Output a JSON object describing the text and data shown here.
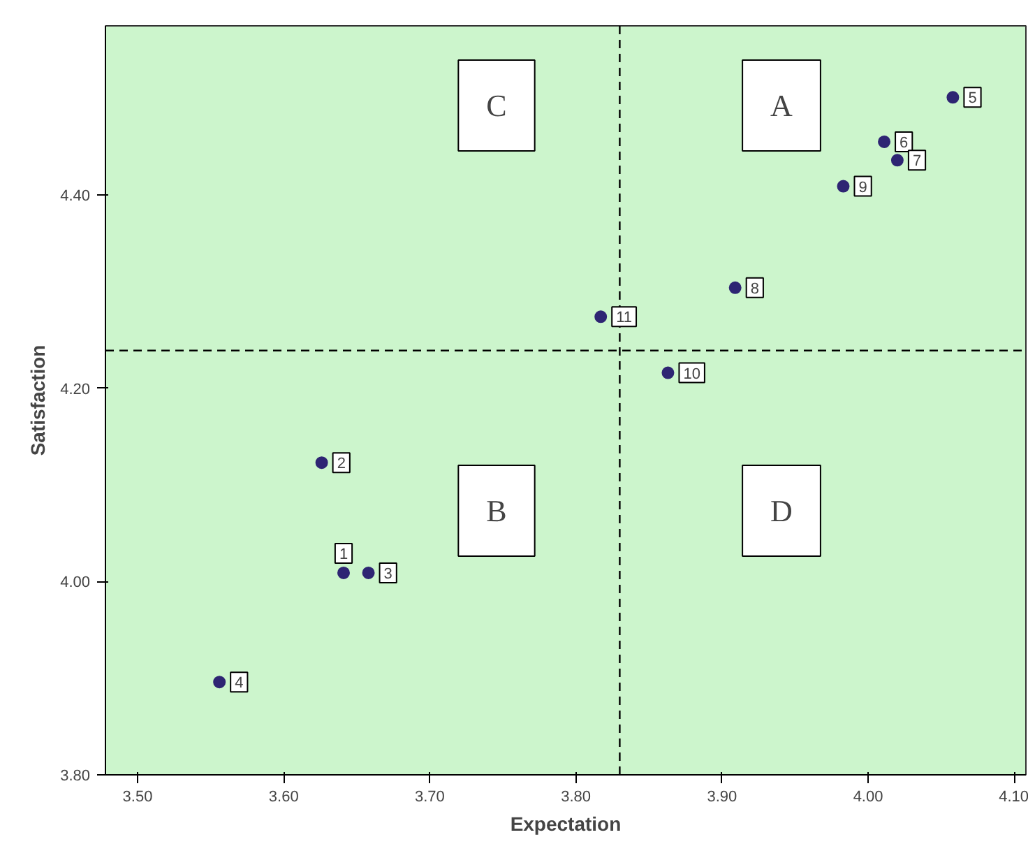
{
  "chart_data": {
    "type": "scatter",
    "xlabel": "Expectation",
    "ylabel": "Satisfaction",
    "x": [
      3.641,
      3.626,
      3.658,
      3.556,
      4.058,
      4.011,
      4.02,
      3.909,
      3.983,
      3.863,
      3.817
    ],
    "values": [
      4.009,
      4.123,
      4.009,
      3.896,
      4.501,
      4.455,
      4.436,
      4.304,
      4.409,
      4.216,
      4.274
    ],
    "color": "#2e2573",
    "marker": "circle",
    "grid": false,
    "xlim": [
      3.478,
      4.108
    ],
    "ylim": [
      3.8,
      4.575
    ],
    "xticks": [
      {
        "value": 3.5,
        "label": "3.50"
      },
      {
        "value": 3.6,
        "label": "3.60"
      },
      {
        "value": 3.7,
        "label": "3.70"
      },
      {
        "value": 3.8,
        "label": "3.80"
      },
      {
        "value": 3.9,
        "label": "3.90"
      },
      {
        "value": 4.0,
        "label": "4.00"
      },
      {
        "value": 4.1,
        "label": "4.10"
      }
    ],
    "yticks": [
      {
        "value": 3.8,
        "label": "3.80"
      },
      {
        "value": 4.0,
        "label": "4.00"
      },
      {
        "value": 4.2,
        "label": "4.20"
      },
      {
        "value": 4.4,
        "label": "4.40"
      }
    ],
    "ref_lines": [
      {
        "axis": "x",
        "value": 3.83,
        "line_style": "dashed",
        "color": "#000000"
      },
      {
        "axis": "y",
        "value": 4.239,
        "line_style": "dashed",
        "color": "#000000"
      }
    ],
    "annotations": [
      "C",
      "A",
      "B",
      "D",
      {
        "text": "1",
        "x": 3.641,
        "y": 4.009
      },
      {
        "text": "2",
        "x": 3.626,
        "y": 4.123
      },
      {
        "text": "3",
        "x": 3.658,
        "y": 4.009
      },
      {
        "text": "4",
        "x": 3.556,
        "y": 3.896
      },
      {
        "text": "5",
        "x": 4.058,
        "y": 4.501
      },
      {
        "text": "6",
        "x": 4.011,
        "y": 4.455
      },
      {
        "text": "7",
        "x": 4.02,
        "y": 4.436
      },
      {
        "text": "8",
        "x": 3.909,
        "y": 4.304
      },
      {
        "text": "9",
        "x": 3.983,
        "y": 4.409
      },
      {
        "text": "10",
        "x": 3.863,
        "y": 4.216
      },
      {
        "text": "11",
        "x": 3.817,
        "y": 4.274
      }
    ]
  }
}
